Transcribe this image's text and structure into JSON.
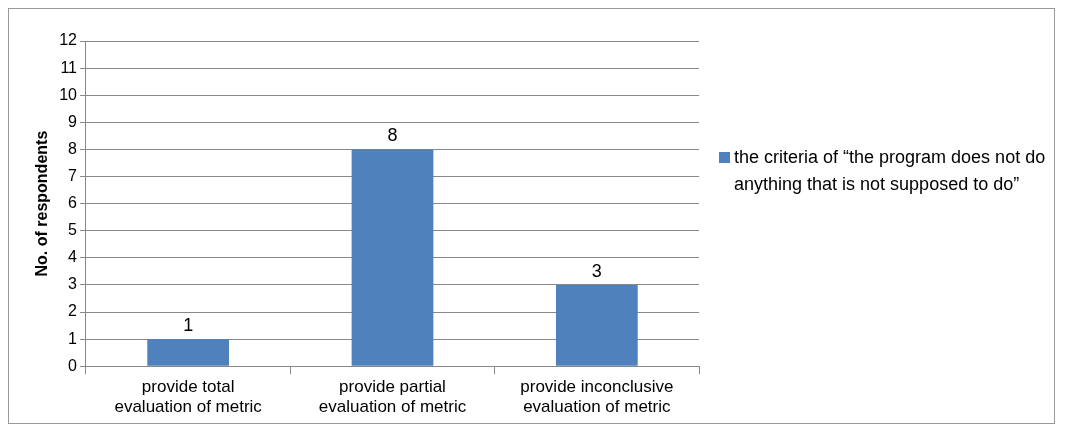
{
  "chart_data": {
    "type": "bar",
    "ylabel": "No. of respondents",
    "categories": [
      "provide total evaluation of metric",
      "provide partial evaluation of metric",
      "provide inconclusive evaluation of metric"
    ],
    "series": [
      {
        "name": "the criteria of “the program does not do anything that is not supposed to do”",
        "color": "#4f81bd",
        "values": [
          1,
          8,
          3
        ]
      }
    ],
    "ylim": [
      0,
      12
    ],
    "yticks": [
      0,
      1,
      2,
      3,
      4,
      5,
      6,
      7,
      8,
      9,
      10,
      11,
      12
    ],
    "grid": "y",
    "legend": "right",
    "data_labels": true
  }
}
